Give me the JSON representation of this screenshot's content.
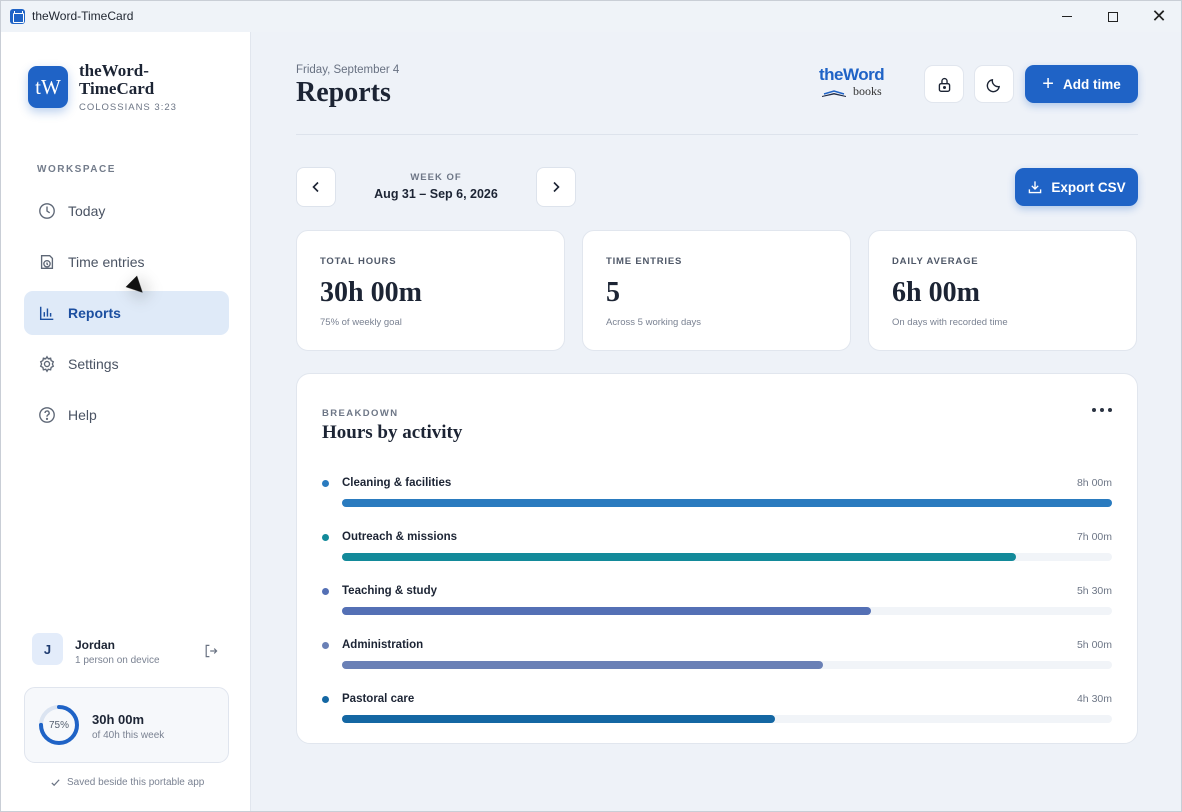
{
  "window": {
    "title": "theWord-TimeCard"
  },
  "sidebar": {
    "logo_initials": "tW",
    "app_name": "theWord-TimeCard",
    "verse": "COLOSSIANS 3:23",
    "section_label": "WORKSPACE",
    "items": [
      {
        "label": "Today",
        "icon": "clock-icon",
        "active": false
      },
      {
        "label": "Time entries",
        "icon": "history-icon",
        "active": false
      },
      {
        "label": "Reports",
        "icon": "bar-chart-icon",
        "active": true
      },
      {
        "label": "Settings",
        "icon": "gear-icon",
        "active": false
      },
      {
        "label": "Help",
        "icon": "help-icon",
        "active": false
      }
    ],
    "user": {
      "initial": "J",
      "name": "Jordan",
      "sub": "1 person on device"
    },
    "progress": {
      "percent_label": "75%",
      "fraction": 0.75,
      "hours": "30h 00m",
      "sub": "of 40h this week"
    },
    "saved_note": "Saved beside this portable app"
  },
  "header": {
    "date": "Friday, September 4",
    "title": "Reports",
    "brand_the_word": "theWord",
    "brand_books": "books",
    "add_time_label": "Add time"
  },
  "week": {
    "label": "WEEK OF",
    "range": "Aug 31 – Sep 6, 2026",
    "export_label": "Export CSV"
  },
  "stats": [
    {
      "label": "TOTAL HOURS",
      "value": "30h 00m",
      "sub": "75% of weekly goal"
    },
    {
      "label": "TIME ENTRIES",
      "value": "5",
      "sub": "Across 5 working days"
    },
    {
      "label": "DAILY AVERAGE",
      "value": "6h 00m",
      "sub": "On days with recorded time"
    }
  ],
  "breakdown": {
    "eyebrow": "BREAKDOWN",
    "title": "Hours by activity",
    "activities": [
      {
        "name": "Cleaning & facilities",
        "value": "8h 00m",
        "hours": 8.0,
        "color": "#2a7bbf"
      },
      {
        "name": "Outreach & missions",
        "value": "7h 00m",
        "hours": 7.0,
        "color": "#138a9a"
      },
      {
        "name": "Teaching & study",
        "value": "5h 30m",
        "hours": 5.5,
        "color": "#5470b5"
      },
      {
        "name": "Administration",
        "value": "5h 00m",
        "hours": 5.0,
        "color": "#6a80b6"
      },
      {
        "name": "Pastoral care",
        "value": "4h 30m",
        "hours": 4.5,
        "color": "#1467a3"
      }
    ]
  },
  "colors": {
    "accent": "#1f63c6",
    "active_nav_bg": "#dfeaf8"
  }
}
